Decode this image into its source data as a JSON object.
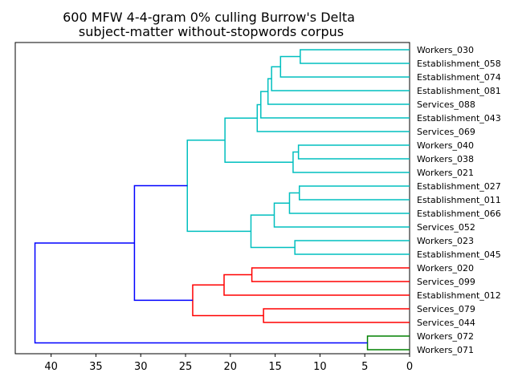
{
  "chart_data": {
    "type": "dendrogram",
    "title": "600 MFW 4-4-gram 0% culling Burrow's Delta",
    "subtitle": "subject-matter without-stopwords corpus",
    "xlabel": "",
    "ylabel": "",
    "orientation": "left",
    "xlim": [
      44,
      0
    ],
    "x_ticks": [
      40,
      35,
      30,
      25,
      20,
      15,
      10,
      5,
      0
    ],
    "leaves": [
      "Workers_030",
      "Establishment_058",
      "Establishment_074",
      "Establishment_081",
      "Services_088",
      "Establishment_043",
      "Services_069",
      "Workers_040",
      "Workers_038",
      "Workers_021",
      "Establishment_027",
      "Establishment_011",
      "Establishment_066",
      "Services_052",
      "Workers_023",
      "Establishment_045",
      "Workers_020",
      "Services_099",
      "Establishment_012",
      "Services_079",
      "Services_044",
      "Workers_072",
      "Workers_071"
    ],
    "colors": {
      "cyan": "#00bfbf",
      "red": "#ff0000",
      "green": "#008000",
      "blue": "#0000ff"
    },
    "merges": [
      {
        "id": 1,
        "a": "Workers_030",
        "b": "Establishment_058",
        "distance": 12.2,
        "color": "cyan"
      },
      {
        "id": 2,
        "a": 1,
        "b": "Establishment_074",
        "distance": 14.4,
        "color": "cyan"
      },
      {
        "id": 3,
        "a": 2,
        "b": "Establishment_081",
        "distance": 15.4,
        "color": "cyan"
      },
      {
        "id": 4,
        "a": 3,
        "b": "Services_088",
        "distance": 15.8,
        "color": "cyan"
      },
      {
        "id": 5,
        "a": 4,
        "b": "Establishment_043",
        "distance": 16.6,
        "color": "cyan"
      },
      {
        "id": 6,
        "a": 5,
        "b": "Services_069",
        "distance": 17.0,
        "color": "cyan"
      },
      {
        "id": 7,
        "a": "Workers_040",
        "b": "Workers_038",
        "distance": 12.4,
        "color": "cyan"
      },
      {
        "id": 8,
        "a": 7,
        "b": "Workers_021",
        "distance": 13.0,
        "color": "cyan"
      },
      {
        "id": 9,
        "a": 6,
        "b": 8,
        "distance": 20.6,
        "color": "cyan"
      },
      {
        "id": 10,
        "a": "Establishment_027",
        "b": "Establishment_011",
        "distance": 12.3,
        "color": "cyan"
      },
      {
        "id": 11,
        "a": 10,
        "b": "Establishment_066",
        "distance": 13.4,
        "color": "cyan"
      },
      {
        "id": 12,
        "a": 11,
        "b": "Services_052",
        "distance": 15.1,
        "color": "cyan"
      },
      {
        "id": 13,
        "a": "Workers_023",
        "b": "Establishment_045",
        "distance": 12.8,
        "color": "cyan"
      },
      {
        "id": 14,
        "a": 12,
        "b": 13,
        "distance": 17.7,
        "color": "cyan"
      },
      {
        "id": 15,
        "a": 9,
        "b": 14,
        "distance": 24.8,
        "color": "cyan"
      },
      {
        "id": 16,
        "a": "Workers_020",
        "b": "Services_099",
        "distance": 17.6,
        "color": "red"
      },
      {
        "id": 17,
        "a": 16,
        "b": "Establishment_012",
        "distance": 20.7,
        "color": "red"
      },
      {
        "id": 18,
        "a": "Services_079",
        "b": "Services_044",
        "distance": 16.3,
        "color": "red"
      },
      {
        "id": 19,
        "a": 17,
        "b": 18,
        "distance": 24.2,
        "color": "red"
      },
      {
        "id": 20,
        "a": 15,
        "b": 19,
        "distance": 30.7,
        "color": "blue"
      },
      {
        "id": 21,
        "a": "Workers_072",
        "b": "Workers_071",
        "distance": 4.7,
        "color": "green"
      },
      {
        "id": 22,
        "a": 20,
        "b": 21,
        "distance": 41.8,
        "color": "blue"
      }
    ]
  }
}
